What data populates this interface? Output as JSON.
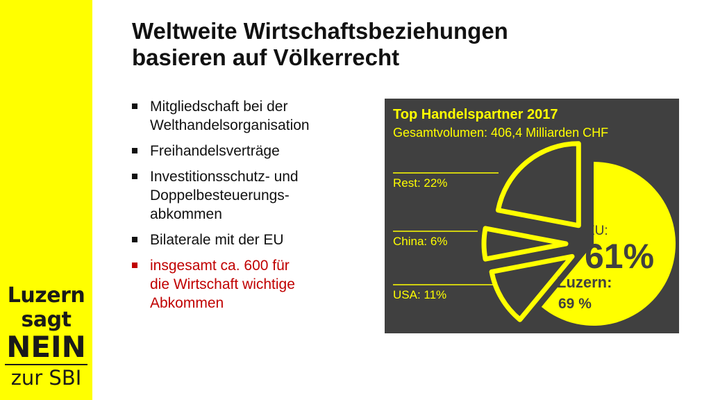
{
  "title_line1": "Weltweite Wirtschaftsbeziehungen",
  "title_line2": "basieren auf Völkerrecht",
  "bullets": [
    {
      "text_lines": [
        "Mitgliedschaft bei der",
        "Welthandelsorganisation"
      ]
    },
    {
      "text_lines": [
        "Freihandelsverträge"
      ]
    },
    {
      "text_lines": [
        "Investitionsschutz- und",
        "Doppelbesteuerungs-",
        "abkommen"
      ]
    },
    {
      "text_lines": [
        "Bilaterale mit der EU"
      ]
    },
    {
      "text_lines": [
        "insgesamt ca. 600 für",
        "die Wirtschaft wichtige",
        "Abkommen"
      ],
      "highlight": true
    }
  ],
  "brand": {
    "line1": "Luzern",
    "line2": "sagt",
    "line3": "NEIN",
    "line4": "zur SBI"
  },
  "colors": {
    "sidebar": "#ffff00",
    "chart_background": "#404040",
    "accent": "#ffff00",
    "highlight_text": "#c00000"
  },
  "chart_data": {
    "type": "pie",
    "title": "Top Handelspartner 2017",
    "subtitle": "Gesamtvolumen: 406,4 Milliarden CHF",
    "slices": [
      {
        "name": "EU",
        "value": 61,
        "label_prefix": "EU:",
        "label_value": "61%",
        "style": "filled"
      },
      {
        "name": "USA",
        "value": 11,
        "label": "USA: 11%",
        "style": "outline"
      },
      {
        "name": "China",
        "value": 6,
        "label": "China: 6%",
        "style": "outline"
      },
      {
        "name": "Rest",
        "value": 22,
        "label": "Rest: 22%",
        "style": "outline"
      }
    ],
    "annotation_line1": "Luzern:",
    "annotation_line2": "69 %"
  }
}
